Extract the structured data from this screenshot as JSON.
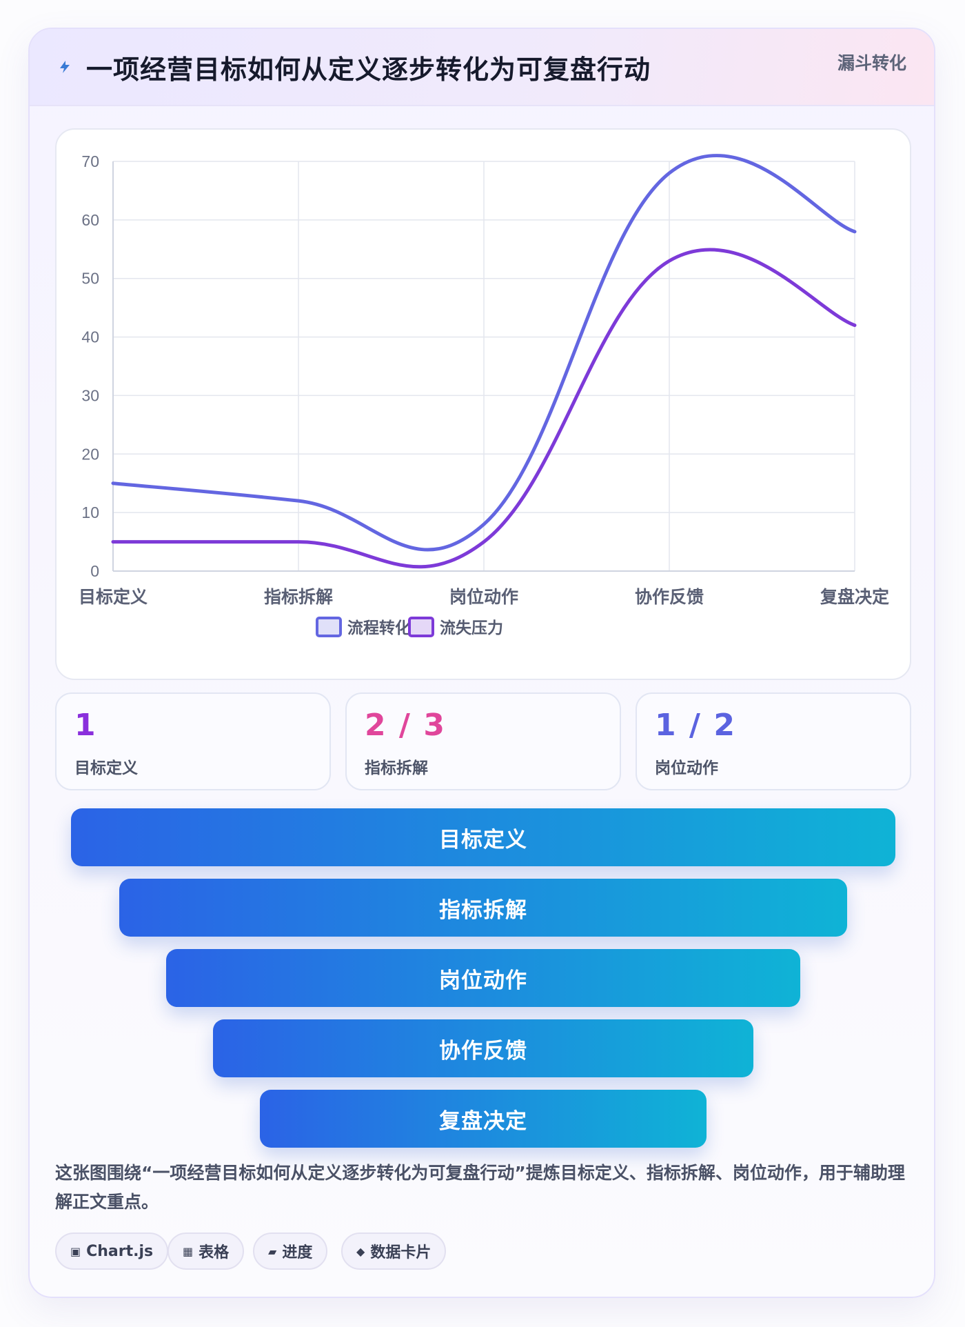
{
  "header": {
    "title": "一项经营目标如何从定义逐步转化为可复盘行动",
    "tag": "漏斗转化",
    "icon": "lightning-icon"
  },
  "chart_data": {
    "type": "line",
    "categories": [
      "目标定义",
      "指标拆解",
      "岗位动作",
      "协作反馈",
      "复盘决定"
    ],
    "series": [
      {
        "name": "流程转化",
        "values": [
          15,
          12,
          8,
          68,
          58
        ],
        "color": "#6366e1"
      },
      {
        "name": "流失压力",
        "values": [
          5,
          5,
          5,
          53,
          42
        ],
        "color": "#7d3ad8"
      }
    ],
    "ylim": [
      0,
      70
    ],
    "yticks": [
      0,
      10,
      20,
      30,
      40,
      50,
      60,
      70
    ],
    "grid": true,
    "legend": "bottom"
  },
  "stats": [
    {
      "value": "1",
      "label": "目标定义",
      "color": "#8a2fdc"
    },
    {
      "value": "2 / 3",
      "label": "指标拆解",
      "color": "#e0469b"
    },
    {
      "value": "1 / 2",
      "label": "岗位动作",
      "color": "#5b63e0"
    }
  ],
  "funnel": [
    "目标定义",
    "指标拆解",
    "岗位动作",
    "协作反馈",
    "复盘决定"
  ],
  "description": "这张图围绕“一项经营目标如何从定义逐步转化为可复盘行动”提炼目标定义、指标拆解、岗位动作，用于辅助理解正文重点。",
  "tags": [
    {
      "icon": "▣",
      "label": "Chart.js"
    },
    {
      "icon": "▦",
      "label": "表格"
    },
    {
      "icon": "▰",
      "label": "进度"
    },
    {
      "icon": "◆",
      "label": "数据卡片"
    }
  ]
}
